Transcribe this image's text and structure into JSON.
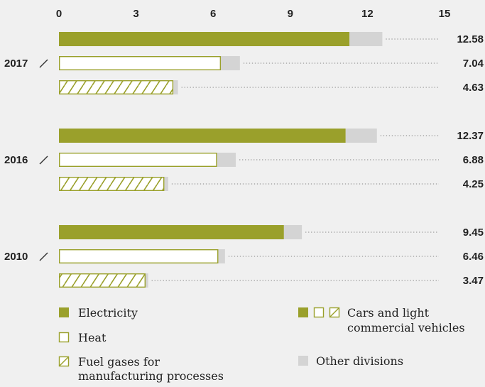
{
  "chart_data": {
    "type": "bar",
    "orientation": "horizontal",
    "stacked": true,
    "xlim": [
      0,
      15
    ],
    "xticks": [
      "0",
      "3",
      "6",
      "9",
      "12",
      "15"
    ],
    "xtick_values": [
      0,
      3,
      6,
      9,
      12,
      15
    ],
    "groups": [
      {
        "year": "2017",
        "bars": [
          {
            "kind": "electricity",
            "cars": 11.3,
            "other": 1.28,
            "total": 12.58,
            "label": "12.58"
          },
          {
            "kind": "heat",
            "cars": 6.3,
            "other": 0.74,
            "total": 7.04,
            "label": "7.04"
          },
          {
            "kind": "fuel",
            "cars": 4.45,
            "other": 0.18,
            "total": 4.63,
            "label": "4.63"
          }
        ]
      },
      {
        "year": "2016",
        "bars": [
          {
            "kind": "electricity",
            "cars": 11.15,
            "other": 1.22,
            "total": 12.37,
            "label": "12.37"
          },
          {
            "kind": "heat",
            "cars": 6.15,
            "other": 0.73,
            "total": 6.88,
            "label": "6.88"
          },
          {
            "kind": "fuel",
            "cars": 4.1,
            "other": 0.15,
            "total": 4.25,
            "label": "4.25"
          }
        ]
      },
      {
        "year": "2010",
        "bars": [
          {
            "kind": "electricity",
            "cars": 8.75,
            "other": 0.7,
            "total": 9.45,
            "label": "9.45"
          },
          {
            "kind": "heat",
            "cars": 6.2,
            "other": 0.26,
            "total": 6.46,
            "label": "6.46"
          },
          {
            "kind": "fuel",
            "cars": 3.37,
            "other": 0.1,
            "total": 3.47,
            "label": "3.47"
          }
        ]
      }
    ],
    "legend": {
      "electricity": "Electricity",
      "heat": "Heat",
      "fuel_line1": "Fuel gases for",
      "fuel_line2": "manufacturing processes",
      "cars_line1": "Cars and light",
      "cars_line2": "commercial vehicles",
      "other": "Other divisions"
    },
    "colors": {
      "olive": "#9aa02b",
      "other": "#d4d4d4",
      "white": "#ffffff",
      "dots": "#999999"
    }
  }
}
